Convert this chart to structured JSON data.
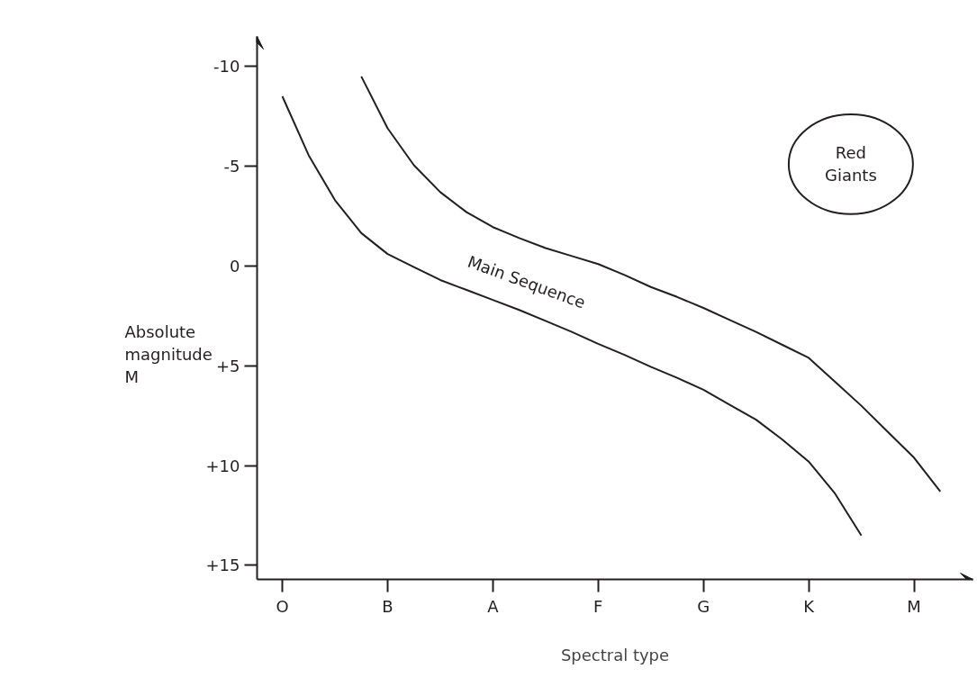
{
  "chart_data": {
    "type": "line",
    "xlabel": "Spectral type",
    "ylabel": "Absolute magnitude M",
    "categories": [
      "O",
      null,
      null,
      null,
      "B",
      null,
      null,
      null,
      "A",
      null,
      null,
      null,
      "F",
      null,
      null,
      null,
      "G",
      null,
      null,
      null,
      "K",
      null,
      null,
      null,
      "M",
      null,
      null
    ],
    "ylim": [
      15.7,
      -11.5
    ],
    "yticks": [
      {
        "value": -10,
        "label": "-10"
      },
      {
        "value": -5,
        "label": "-5"
      },
      0,
      {
        "value": 5,
        "label": "+5"
      },
      {
        "value": 10,
        "label": "+10"
      },
      {
        "value": 15,
        "label": "+15"
      }
    ],
    "grid": false,
    "marker": "none",
    "line_style": "solid",
    "series": [
      {
        "color": "#231f20",
        "values": [
          -8.5,
          -5.55,
          -3.3,
          -1.65,
          -0.6,
          0.05,
          0.7,
          1.2,
          1.7,
          2.2,
          2.75,
          3.3,
          3.9,
          4.45,
          5.05,
          5.6,
          6.2,
          6.95,
          7.7,
          8.7,
          9.8,
          11.4,
          13.5,
          null,
          null,
          null,
          null
        ]
      },
      {
        "color": "#231f20",
        "values": [
          null,
          null,
          null,
          -9.5,
          -6.9,
          -5.05,
          -3.7,
          -2.7,
          -1.95,
          -1.4,
          -0.9,
          -0.5,
          -0.1,
          0.45,
          1.05,
          1.55,
          2.1,
          2.7,
          3.3,
          3.95,
          4.6,
          5.8,
          7.0,
          8.3,
          9.6,
          11.3,
          null
        ]
      }
    ],
    "annotations": [
      "Main Sequence",
      "Red Giants"
    ]
  }
}
